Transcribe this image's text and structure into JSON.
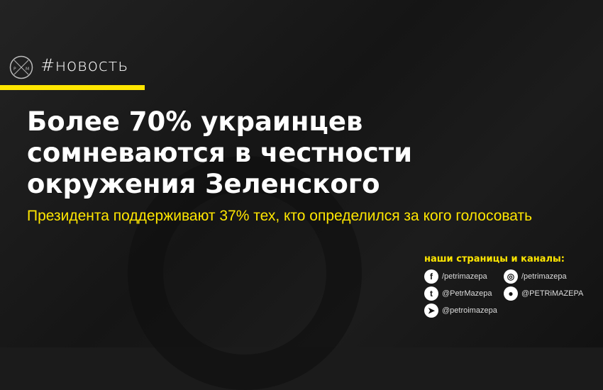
{
  "tag": "#новость",
  "title": [
    "Более 70% украинцев",
    "сомневаются в честности",
    "окружения Зеленского"
  ],
  "subtitle": "Президента поддерживают 37% тех, кто определился за кого голосовать",
  "social": {
    "heading": "наши страницы и каналы:",
    "items": [
      {
        "icon": "facebook-icon",
        "glyph": "f",
        "label": "/petrimazepa"
      },
      {
        "icon": "instagram-icon",
        "glyph": "◎",
        "label": "/petrimazepa"
      },
      {
        "icon": "twitter-icon",
        "glyph": "t",
        "label": "@PetrMazepa"
      },
      {
        "icon": "reddit-icon",
        "glyph": "●",
        "label": "@PETRiMAZEPA"
      },
      {
        "icon": "telegram-icon",
        "glyph": "➤",
        "label": "@petroimazepa"
      }
    ]
  },
  "colors": {
    "accent": "#ffe600",
    "background": "#1b1b1b"
  }
}
